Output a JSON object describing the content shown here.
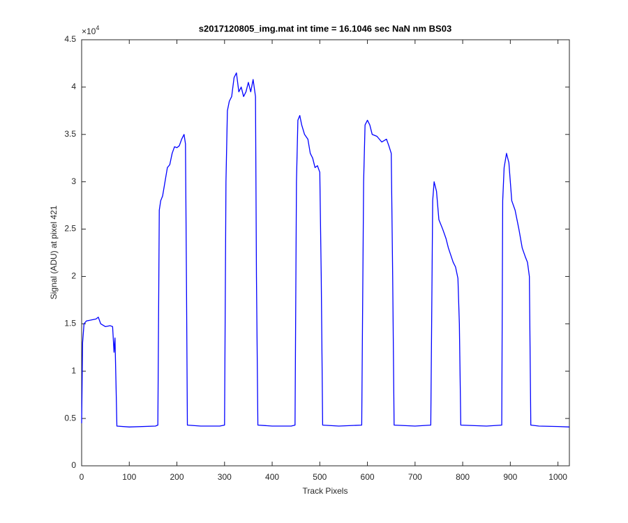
{
  "chart_data": {
    "type": "line",
    "title": "s2017120805_img.mat int time = 16.1046 sec  NaN nm BS03",
    "x_label": "Track Pixels",
    "y_label": "Signal (ADU) at pixel 421",
    "y_exponent_base": "×10",
    "y_exponent": "4",
    "color": "#0000ff",
    "xlim": [
      0,
      1024
    ],
    "ylim": [
      0,
      4.5
    ],
    "xticks": [
      0,
      100,
      200,
      300,
      400,
      500,
      600,
      700,
      800,
      900,
      1000
    ],
    "yticks": [
      0,
      0.5,
      1,
      1.5,
      2,
      2.5,
      3,
      3.5,
      4,
      4.5
    ],
    "x": [
      0,
      2,
      5,
      10,
      20,
      30,
      35,
      40,
      50,
      60,
      65,
      68,
      70,
      72,
      74,
      100,
      155,
      160,
      163,
      166,
      170,
      175,
      180,
      185,
      190,
      195,
      200,
      205,
      210,
      215,
      218,
      220,
      222,
      250,
      290,
      300,
      303,
      306,
      310,
      315,
      320,
      325,
      330,
      335,
      340,
      345,
      350,
      355,
      360,
      365,
      367,
      370,
      400,
      440,
      448,
      451,
      454,
      458,
      462,
      468,
      475,
      480,
      485,
      490,
      495,
      500,
      503,
      506,
      540,
      588,
      592,
      595,
      600,
      605,
      610,
      620,
      630,
      640,
      645,
      650,
      653,
      656,
      700,
      733,
      737,
      740,
      745,
      750,
      758,
      765,
      770,
      780,
      785,
      790,
      793,
      796,
      850,
      882,
      884,
      887,
      892,
      897,
      903,
      910,
      918,
      925,
      932,
      936,
      940,
      943,
      960,
      1000,
      1024
    ],
    "values": [
      0.45,
      1.3,
      1.5,
      1.53,
      1.54,
      1.55,
      1.57,
      1.5,
      1.47,
      1.48,
      1.47,
      1.2,
      1.35,
      0.9,
      0.42,
      0.41,
      0.42,
      0.43,
      2.7,
      2.8,
      2.85,
      3.0,
      3.15,
      3.18,
      3.3,
      3.37,
      3.36,
      3.38,
      3.45,
      3.5,
      3.4,
      2.0,
      0.43,
      0.42,
      0.42,
      0.43,
      3.0,
      3.75,
      3.85,
      3.9,
      4.1,
      4.15,
      3.95,
      4.0,
      3.9,
      3.95,
      4.05,
      3.95,
      4.08,
      3.9,
      2.0,
      0.43,
      0.42,
      0.42,
      0.43,
      3.0,
      3.65,
      3.7,
      3.6,
      3.5,
      3.45,
      3.3,
      3.25,
      3.15,
      3.17,
      3.1,
      2.0,
      0.43,
      0.42,
      0.43,
      3.0,
      3.6,
      3.65,
      3.6,
      3.5,
      3.48,
      3.42,
      3.45,
      3.38,
      3.3,
      2.0,
      0.43,
      0.42,
      0.43,
      2.8,
      3.0,
      2.9,
      2.6,
      2.5,
      2.4,
      2.3,
      2.15,
      2.1,
      1.98,
      1.5,
      0.43,
      0.42,
      0.43,
      2.8,
      3.15,
      3.3,
      3.2,
      2.8,
      2.7,
      2.5,
      2.3,
      2.2,
      2.15,
      2.0,
      0.43,
      0.42,
      0.415,
      0.41
    ]
  }
}
